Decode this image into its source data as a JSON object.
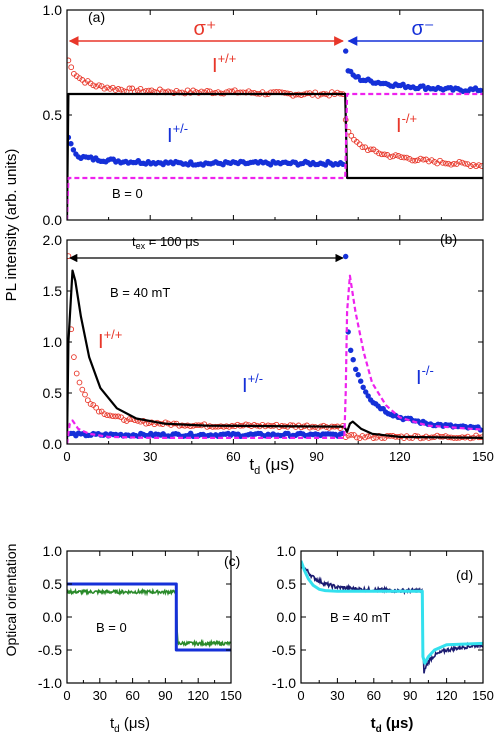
{
  "figure": {
    "y_label_top": "PL intensity (arb. units)",
    "y_label_bottom": "Optical orientation",
    "x_label_main": "t",
    "x_label_sub": "d",
    "x_label_unit": " (μs)"
  },
  "chart_data": [
    {
      "panel": "(a)",
      "type": "line",
      "xlim": [
        0,
        150
      ],
      "ylim": [
        0,
        1.0
      ],
      "x_ticks": [
        0,
        30,
        60,
        90,
        120,
        150
      ],
      "y_ticks": [
        "0.0",
        "0.5",
        "1.0"
      ],
      "annotations": [
        "σ⁺",
        "σ⁻",
        "B = 0"
      ],
      "series_labels": [
        "I+/+",
        "I+/-",
        "I-/+"
      ],
      "colors": {
        "red": "#e8372a",
        "blue": "#1530d8",
        "black": "#000000",
        "magenta": "#ee22ee"
      },
      "series": [
        {
          "name": "I+/+",
          "style": "open-circles",
          "color": "#e8372a",
          "x": [
            0.5,
            2,
            5,
            10,
            20,
            40,
            60,
            80,
            100
          ],
          "y": [
            0.76,
            0.71,
            0.67,
            0.64,
            0.62,
            0.61,
            0.61,
            0.6,
            0.6
          ]
        },
        {
          "name": "I+/-",
          "style": "filled-circles",
          "color": "#1530d8",
          "x": [
            0.5,
            2,
            5,
            10,
            20,
            40,
            60,
            80,
            100
          ],
          "y": [
            0.4,
            0.33,
            0.3,
            0.29,
            0.28,
            0.27,
            0.27,
            0.27,
            0.27
          ]
        },
        {
          "name": "I-/-",
          "style": "filled-circles",
          "color": "#1530d8",
          "x": [
            100.5,
            101,
            103,
            106,
            110,
            120,
            130,
            140,
            150
          ],
          "y": [
            0.8,
            0.72,
            0.69,
            0.67,
            0.66,
            0.64,
            0.63,
            0.62,
            0.62
          ]
        },
        {
          "name": "I-/+",
          "style": "open-circles",
          "color": "#e8372a",
          "x": [
            100.5,
            102,
            105,
            110,
            115,
            120,
            130,
            140,
            150
          ],
          "y": [
            0.48,
            0.4,
            0.36,
            0.33,
            0.31,
            0.3,
            0.28,
            0.27,
            0.26
          ]
        },
        {
          "name": "model-black",
          "style": "line",
          "color": "#000000",
          "x": [
            0,
            0.5,
            100,
            100.3,
            101,
            150
          ],
          "y": [
            0,
            0.6,
            0.6,
            0.6,
            0.2,
            0.2
          ]
        },
        {
          "name": "model-magenta",
          "style": "dashed",
          "color": "#ee22ee",
          "x": [
            0,
            0.5,
            100,
            100.3,
            101,
            150
          ],
          "y": [
            0,
            0.2,
            0.2,
            0.2,
            0.6,
            0.6
          ]
        }
      ]
    },
    {
      "panel": "(b)",
      "type": "line",
      "xlim": [
        0,
        150
      ],
      "ylim": [
        0,
        2.0
      ],
      "x_ticks": [
        0,
        30,
        60,
        90,
        120,
        150
      ],
      "y_ticks": [
        "0.0",
        "0.5",
        "1.0",
        "1.5",
        "2.0"
      ],
      "annotations": [
        "t",
        "ex",
        " = 100 μs",
        "B = 40 mT"
      ],
      "series_labels": [
        "I+/+",
        "I+/-",
        "I-/-"
      ],
      "series": [
        {
          "name": "I+/+",
          "style": "open-circles",
          "color": "#e8372a",
          "x": [
            0.5,
            1,
            2,
            3,
            5,
            8,
            12,
            18,
            25,
            35,
            50,
            70,
            100
          ],
          "y": [
            1.85,
            1.3,
            0.95,
            0.75,
            0.55,
            0.42,
            0.32,
            0.26,
            0.22,
            0.2,
            0.18,
            0.18,
            0.17
          ]
        },
        {
          "name": "I+/-",
          "style": "filled-circles",
          "color": "#1530d8",
          "x": [
            0.5,
            5,
            20,
            50,
            100
          ],
          "y": [
            0.1,
            0.09,
            0.09,
            0.09,
            0.09
          ]
        },
        {
          "name": "I-/-",
          "style": "filled-circles",
          "color": "#1530d8",
          "x": [
            100.5,
            101,
            102,
            104,
            107,
            110,
            115,
            120,
            130,
            140,
            150
          ],
          "y": [
            1.85,
            1.2,
            0.95,
            0.75,
            0.55,
            0.42,
            0.32,
            0.26,
            0.2,
            0.17,
            0.15
          ]
        },
        {
          "name": "I-/+",
          "style": "open-circles",
          "color": "#e8372a",
          "x": [
            100.5,
            105,
            120,
            150
          ],
          "y": [
            0.08,
            0.07,
            0.07,
            0.07
          ]
        },
        {
          "name": "model-black",
          "style": "line",
          "color": "#000000",
          "x": [
            0,
            0.5,
            2,
            3,
            5,
            8,
            12,
            18,
            25,
            35,
            50,
            100,
            101,
            102,
            103,
            106,
            110,
            120,
            150
          ],
          "y": [
            0,
            1.0,
            1.7,
            1.6,
            1.25,
            0.85,
            0.55,
            0.35,
            0.25,
            0.2,
            0.18,
            0.17,
            0.12,
            0.2,
            0.22,
            0.15,
            0.1,
            0.07,
            0.06
          ]
        },
        {
          "name": "model-magenta",
          "style": "dashed",
          "color": "#ee22ee",
          "x": [
            0,
            1,
            2,
            4,
            8,
            15,
            30,
            100,
            100.5,
            101,
            102,
            104,
            107,
            110,
            115,
            120,
            130,
            150
          ],
          "y": [
            0,
            0.2,
            0.23,
            0.15,
            0.1,
            0.07,
            0.06,
            0.06,
            0.5,
            1.3,
            1.65,
            1.3,
            0.9,
            0.6,
            0.38,
            0.26,
            0.18,
            0.14
          ]
        }
      ]
    },
    {
      "panel": "(c)",
      "type": "line",
      "xlim": [
        0,
        150
      ],
      "ylim": [
        -1.0,
        1.0
      ],
      "x_ticks": [
        0,
        30,
        60,
        90,
        120,
        150
      ],
      "y_ticks": [
        "-1.0",
        "-0.5",
        "0.0",
        "0.5",
        "1.0"
      ],
      "annotations": [
        "B = 0"
      ],
      "series": [
        {
          "name": "experiment",
          "style": "noisy-line",
          "color": "#2a8a2a",
          "x": [
            0,
            100,
            101,
            150
          ],
          "y": [
            0.38,
            0.38,
            -0.4,
            -0.4
          ]
        },
        {
          "name": "model",
          "style": "line",
          "color": "#1530d8",
          "x": [
            0,
            100,
            100,
            150
          ],
          "y": [
            0.5,
            0.5,
            -0.5,
            -0.5
          ]
        }
      ]
    },
    {
      "panel": "(d)",
      "type": "line",
      "xlim": [
        0,
        150
      ],
      "ylim": [
        -1.0,
        1.0
      ],
      "x_ticks": [
        0,
        30,
        60,
        90,
        120,
        150
      ],
      "y_ticks": [
        "-1.0",
        "-0.5",
        "0.0",
        "0.5",
        "1.0"
      ],
      "annotations": [
        "B = 40 mT"
      ],
      "series": [
        {
          "name": "experiment",
          "style": "noisy-line",
          "color": "#1a1a70",
          "x": [
            0,
            5,
            10,
            20,
            30,
            50,
            80,
            100,
            101,
            103,
            106,
            110,
            120,
            135,
            150
          ],
          "y": [
            0.8,
            0.7,
            0.6,
            0.5,
            0.45,
            0.42,
            0.4,
            0.4,
            -0.85,
            -0.75,
            -0.65,
            -0.58,
            -0.5,
            -0.45,
            -0.42
          ]
        },
        {
          "name": "model",
          "style": "line",
          "color": "#33e0ee",
          "x": [
            0,
            3,
            6,
            10,
            15,
            20,
            30,
            100,
            100.5,
            102,
            105,
            110,
            120,
            150
          ],
          "y": [
            0.85,
            0.7,
            0.58,
            0.48,
            0.42,
            0.4,
            0.39,
            0.39,
            -0.6,
            -0.7,
            -0.6,
            -0.5,
            -0.42,
            -0.4
          ]
        }
      ]
    }
  ]
}
